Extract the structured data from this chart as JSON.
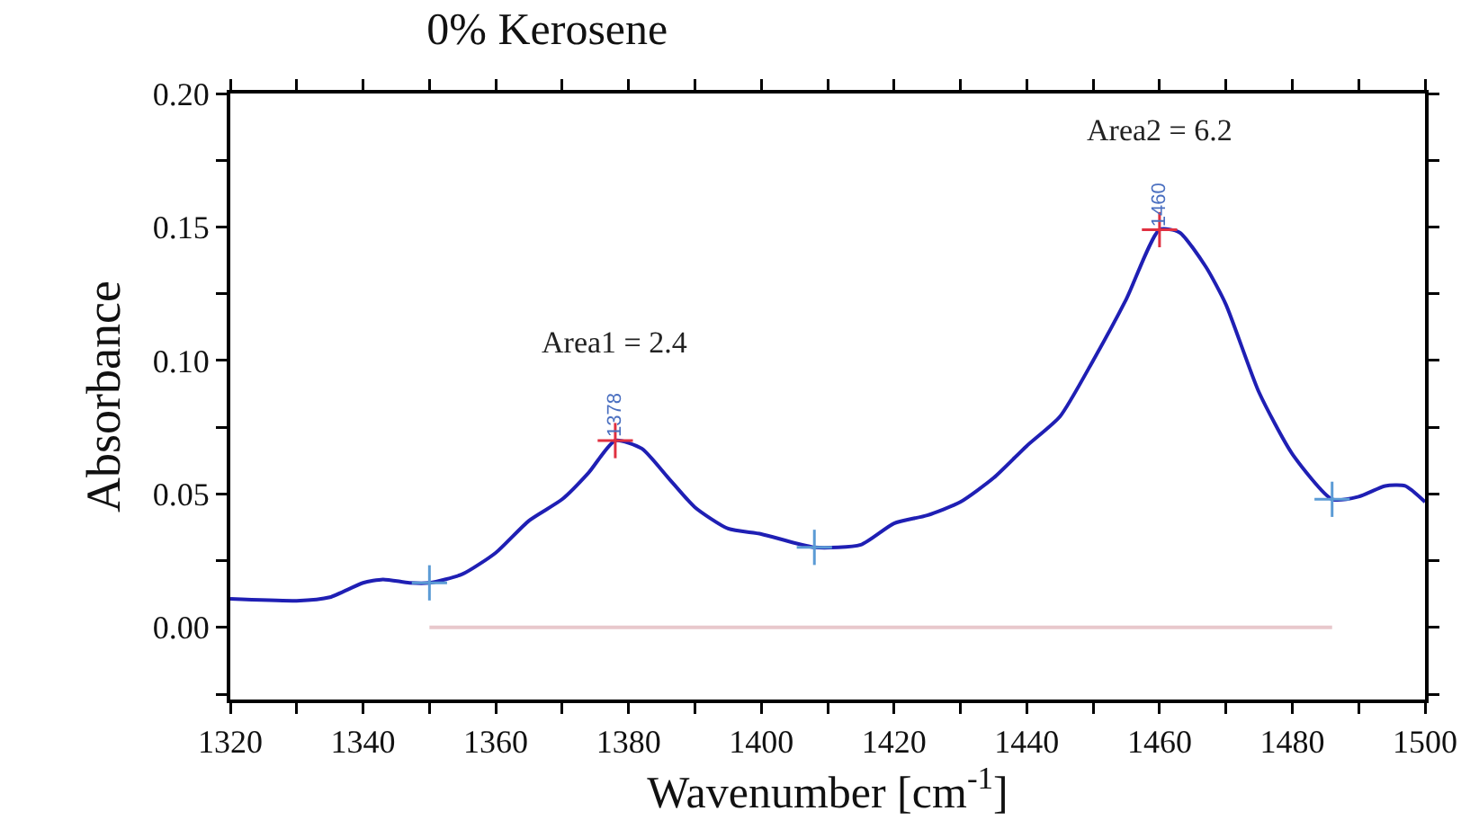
{
  "chart_data": {
    "type": "line",
    "title": "0% Kerosene",
    "xlabel": "Wavenumber [cm$^{-1}$]",
    "ylabel": "Absorbance",
    "xlim": [
      1320,
      1500
    ],
    "ylim": [
      -0.027,
      0.2
    ],
    "xticks": [
      1320,
      {
        "value": 1330,
        "label": null
      },
      1340,
      {
        "value": 1350,
        "label": null
      },
      1360,
      {
        "value": 1370,
        "label": null
      },
      1380,
      {
        "value": 1390,
        "label": null
      },
      1400,
      {
        "value": 1410,
        "label": null
      },
      1420,
      {
        "value": 1430,
        "label": null
      },
      1440,
      {
        "value": 1450,
        "label": null
      },
      1460,
      {
        "value": 1470,
        "label": null
      },
      1480,
      {
        "value": 1490,
        "label": null
      },
      1500
    ],
    "yticks": [
      {
        "value": -0.025,
        "label": null
      },
      {
        "value": 0,
        "label": "0.00"
      },
      {
        "value": 0.025,
        "label": null
      },
      {
        "value": 0.05,
        "label": "0.05"
      },
      {
        "value": 0.075,
        "label": null
      },
      {
        "value": 0.1,
        "label": "0.10"
      },
      {
        "value": 0.125,
        "label": null
      },
      {
        "value": 0.15,
        "label": "0.15"
      },
      {
        "value": 0.175,
        "label": null
      },
      {
        "value": 0.2,
        "label": "0.20"
      }
    ],
    "grid": false,
    "line_style": "solid",
    "marker": "none",
    "series": [
      {
        "color": "#1f1fb4",
        "x": [
          1320,
          1330,
          1335,
          1340,
          1343,
          1347,
          1350,
          1355,
          1360,
          1365,
          1370,
          1374,
          1378,
          1382,
          1386,
          1390,
          1395,
          1400,
          1408,
          1415,
          1420,
          1425,
          1430,
          1435,
          1440,
          1445,
          1450,
          1455,
          1460,
          1463,
          1467,
          1470,
          1475,
          1480,
          1486,
          1490,
          1494,
          1497,
          1500
        ],
        "values": [
          0.0107,
          0.01,
          0.0113,
          0.0167,
          0.018,
          0.0167,
          0.0167,
          0.02,
          0.028,
          0.04,
          0.048,
          0.058,
          0.07,
          0.067,
          0.056,
          0.045,
          0.037,
          0.035,
          0.03,
          0.031,
          0.039,
          0.042,
          0.047,
          0.056,
          0.068,
          0.079,
          0.1,
          0.123,
          0.149,
          0.148,
          0.135,
          0.121,
          0.088,
          0.065,
          0.048,
          0.049,
          0.053,
          0.053,
          0.047
        ]
      },
      {
        "type": "line",
        "color": "#e8c8cc",
        "x": [
          1350,
          1486
        ],
        "values": [
          0,
          0
        ]
      },
      {
        "type": "scatter",
        "marker": "cross",
        "color": "#5b9bd5",
        "x": [
          1350,
          1408,
          1486
        ],
        "values": [
          0.0167,
          0.03,
          0.048
        ]
      },
      {
        "type": "scatter",
        "marker": "cross",
        "color": "#e03040",
        "x": [
          1378,
          1460
        ],
        "values": [
          0.07,
          0.149
        ]
      }
    ],
    "annotations": [
      "Area1 = 2.4",
      "Area2 = 6.2",
      {
        "text": "1378",
        "x": 1378,
        "y": 0.07
      },
      {
        "text": "1460",
        "x": 1460,
        "y": 0.149
      }
    ]
  }
}
